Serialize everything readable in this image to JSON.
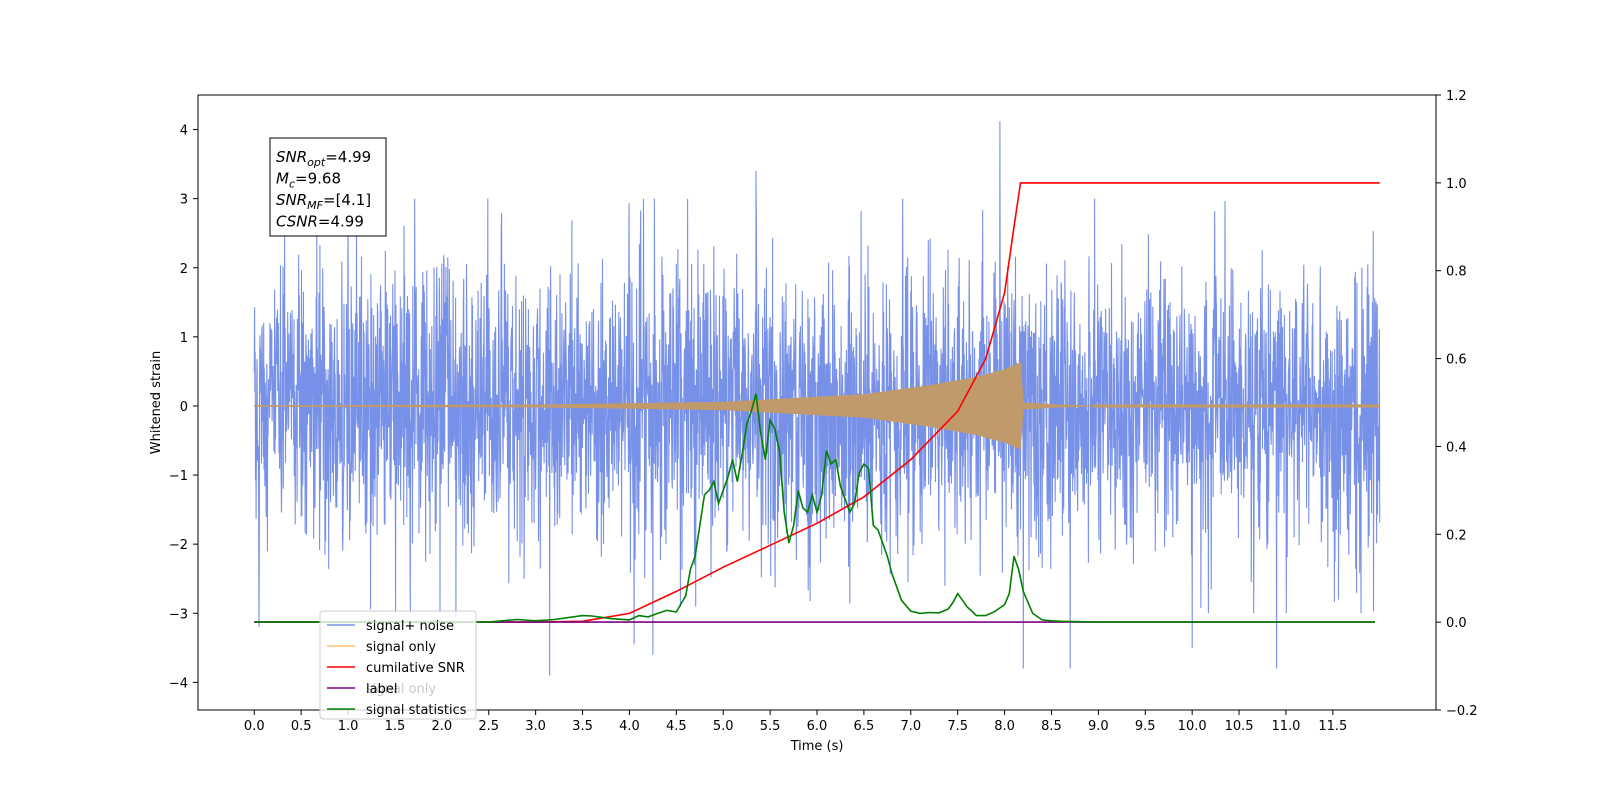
{
  "chart_data": {
    "type": "line",
    "xlabel": "Time (s)",
    "ylabel": "Whitened strain",
    "xlim": [
      -0.6,
      12.6
    ],
    "ylim": [
      -4.4,
      4.5
    ],
    "y2lim": [
      -0.2,
      1.2
    ],
    "x_ticks": [
      0.0,
      0.5,
      1.0,
      1.5,
      2.0,
      2.5,
      3.0,
      3.5,
      4.0,
      4.5,
      5.0,
      5.5,
      6.0,
      6.5,
      7.0,
      7.5,
      8.0,
      8.5,
      9.0,
      9.5,
      10.0,
      10.5,
      11.0,
      11.5
    ],
    "x_tick_labels": [
      "0.0",
      "0.5",
      "1.0",
      "1.5",
      "2.0",
      "2.5",
      "3.0",
      "3.5",
      "4.0",
      "4.5",
      "5.0",
      "5.5",
      "6.0",
      "6.5",
      "7.0",
      "7.5",
      "8.0",
      "8.5",
      "9.0",
      "9.5",
      "10.0",
      "10.5",
      "11.0",
      "11.5"
    ],
    "y_ticks": [
      4,
      3,
      2,
      1,
      0,
      -1,
      -2,
      -3,
      -4
    ],
    "y_tick_labels": [
      "4",
      "3",
      "2",
      "1",
      "0",
      "−1",
      "−2",
      "−3",
      "−4"
    ],
    "y2_ticks": [
      1.2,
      1.0,
      0.8,
      0.6,
      0.4,
      0.2,
      0.0,
      -0.2
    ],
    "y2_tick_labels": [
      "1.2",
      "1.0",
      "0.8",
      "0.6",
      "0.4",
      "0.2",
      "0.0",
      "−0.2"
    ],
    "grid": false,
    "legend": {
      "placement": "lower-left",
      "entries": [
        {
          "label": "signal+ noise",
          "color": "#7891e8"
        },
        {
          "label": "signal only",
          "color": "#ffc469"
        },
        {
          "label": "cumilative SNR",
          "color": "#ff0000"
        },
        {
          "label": "label",
          "color": "#800080"
        },
        {
          "label": "signal statistics",
          "color": "#008000"
        }
      ],
      "hidden_label": "signal only"
    },
    "annotation": {
      "lines": [
        {
          "sym": "SNR",
          "sub": "opt",
          "rest": "=4.99"
        },
        {
          "sym": "M",
          "sub": "c",
          "rest": "=9.68"
        },
        {
          "sym": "SNR",
          "sub": "MF",
          "rest": "=[4.1]"
        },
        {
          "sym": "CSNR",
          "sub": "",
          "rest": "=4.99"
        }
      ]
    },
    "series": [
      {
        "name": "signal+ noise",
        "color": "#7891e8",
        "axis": "left",
        "kind": "noise",
        "x_range": [
          0.0,
          12.0
        ],
        "sigma": 1.0,
        "spikes": [
          [
            0.05,
            -3.2
          ],
          [
            1.0,
            3.0
          ],
          [
            2.15,
            -3.05
          ],
          [
            3.15,
            -3.9
          ],
          [
            4.05,
            -3.45
          ],
          [
            4.25,
            -3.6
          ],
          [
            5.35,
            3.4
          ],
          [
            7.95,
            4.12
          ],
          [
            8.2,
            -3.8
          ],
          [
            8.7,
            -3.8
          ],
          [
            10.0,
            -3.5
          ],
          [
            10.9,
            -3.8
          ],
          [
            11.8,
            -3.0
          ]
        ]
      },
      {
        "name": "signal only",
        "color": "#ffc469",
        "overlap_color": "#c19a6b",
        "axis": "left",
        "kind": "chirp",
        "x_range": [
          0.0,
          12.0
        ],
        "merger_time": 8.17,
        "envelope": [
          [
            0.0,
            0.01
          ],
          [
            3.0,
            0.02
          ],
          [
            5.0,
            0.06
          ],
          [
            6.5,
            0.17
          ],
          [
            7.2,
            0.3
          ],
          [
            7.7,
            0.42
          ],
          [
            8.0,
            0.53
          ],
          [
            8.17,
            0.63
          ],
          [
            8.2,
            0.05
          ],
          [
            8.6,
            0.02
          ],
          [
            9.0,
            0.005
          ]
        ]
      },
      {
        "name": "cumilative SNR",
        "color": "#ff0000",
        "axis": "right",
        "x": [
          0.0,
          2.0,
          3.0,
          3.5,
          4.0,
          4.5,
          5.0,
          5.5,
          6.0,
          6.5,
          7.0,
          7.5,
          7.8,
          8.0,
          8.1,
          8.17,
          8.5,
          9.0,
          10.0,
          11.0,
          12.0
        ],
        "y": [
          0.0,
          0.0,
          0.0,
          0.002,
          0.02,
          0.07,
          0.125,
          0.175,
          0.225,
          0.285,
          0.37,
          0.48,
          0.6,
          0.75,
          0.9,
          1.0,
          1.0,
          1.0,
          1.0,
          1.0,
          1.0
        ]
      },
      {
        "name": "label",
        "color": "#800080",
        "axis": "right",
        "x": [
          0.0,
          11.95
        ],
        "y": [
          0.0,
          0.0
        ]
      },
      {
        "name": "signal statistics",
        "color": "#008000",
        "axis": "right",
        "x": [
          0.0,
          2.5,
          2.8,
          3.0,
          3.2,
          3.5,
          3.6,
          3.8,
          4.0,
          4.1,
          4.2,
          4.3,
          4.4,
          4.5,
          4.6,
          4.65,
          4.7,
          4.8,
          4.85,
          4.9,
          4.95,
          5.0,
          5.05,
          5.1,
          5.15,
          5.2,
          5.25,
          5.3,
          5.35,
          5.4,
          5.45,
          5.5,
          5.55,
          5.6,
          5.65,
          5.7,
          5.75,
          5.8,
          5.85,
          5.9,
          5.95,
          6.0,
          6.05,
          6.1,
          6.15,
          6.2,
          6.25,
          6.3,
          6.35,
          6.4,
          6.45,
          6.5,
          6.55,
          6.6,
          6.65,
          6.7,
          6.75,
          6.8,
          6.9,
          7.0,
          7.1,
          7.2,
          7.3,
          7.4,
          7.45,
          7.5,
          7.55,
          7.6,
          7.7,
          7.8,
          7.9,
          8.0,
          8.05,
          8.1,
          8.15,
          8.2,
          8.3,
          8.4,
          8.5,
          8.6,
          8.8,
          9.0,
          11.95
        ],
        "y": [
          0.0,
          0.0,
          0.006,
          0.003,
          0.006,
          0.015,
          0.014,
          0.008,
          0.005,
          0.015,
          0.012,
          0.02,
          0.027,
          0.023,
          0.06,
          0.12,
          0.15,
          0.29,
          0.3,
          0.32,
          0.27,
          0.3,
          0.33,
          0.37,
          0.32,
          0.38,
          0.45,
          0.48,
          0.52,
          0.43,
          0.37,
          0.46,
          0.44,
          0.39,
          0.25,
          0.18,
          0.22,
          0.3,
          0.26,
          0.25,
          0.29,
          0.25,
          0.29,
          0.39,
          0.36,
          0.37,
          0.31,
          0.28,
          0.25,
          0.27,
          0.34,
          0.36,
          0.35,
          0.22,
          0.21,
          0.18,
          0.15,
          0.11,
          0.05,
          0.025,
          0.02,
          0.022,
          0.021,
          0.03,
          0.045,
          0.065,
          0.05,
          0.035,
          0.015,
          0.015,
          0.025,
          0.04,
          0.065,
          0.15,
          0.12,
          0.07,
          0.02,
          0.005,
          0.003,
          0.002,
          0.001,
          0.0,
          0.0
        ]
      }
    ]
  }
}
